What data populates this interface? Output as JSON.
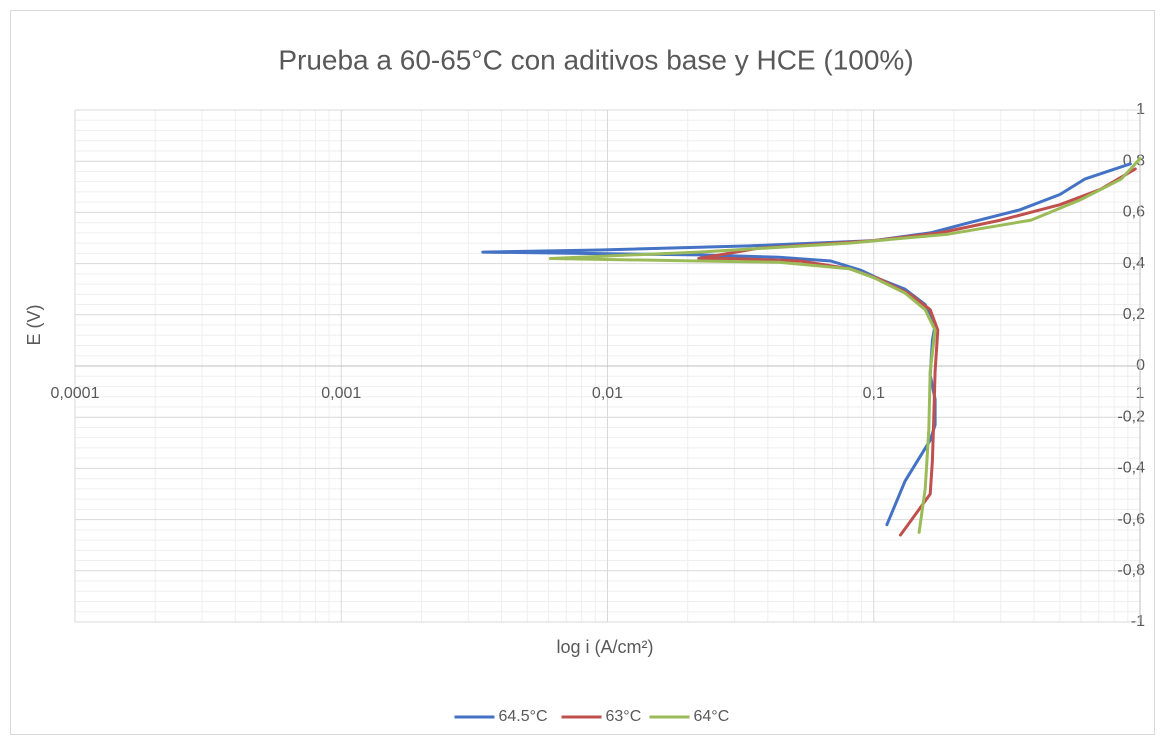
{
  "chart_data": {
    "type": "line",
    "title": "Prueba a 60-65°C con aditivos base y HCE (100%)",
    "x_label": "log i (A/cm²)",
    "y_label": "E (V)",
    "xscale": "log",
    "xlim": [
      0.0001,
      1
    ],
    "xticks": [
      {
        "value": 0.0001,
        "label": "0,0001"
      },
      {
        "value": 0.001,
        "label": "0,001"
      },
      {
        "value": 0.01,
        "label": "0,01"
      },
      {
        "value": 0.1,
        "label": "0,1"
      },
      1
    ],
    "ylim": [
      -1,
      1
    ],
    "yticks": [
      -1,
      {
        "value": -0.8,
        "label": "-0,8"
      },
      {
        "value": -0.6,
        "label": "-0,6"
      },
      {
        "value": -0.4,
        "label": "-0,4"
      },
      {
        "value": -0.2,
        "label": "-0,2"
      },
      0,
      {
        "value": 0.2,
        "label": "0,2"
      },
      {
        "value": 0.4,
        "label": "0,4"
      },
      {
        "value": 0.6,
        "label": "0,6"
      },
      {
        "value": 0.8,
        "label": "0,8"
      },
      1
    ],
    "grid": true,
    "minor_grid": true,
    "legend": "bottom",
    "series": [
      {
        "name": "64.5°C",
        "color": "#4472c4",
        "x": [
          0.112,
          0.131,
          0.163,
          0.17,
          0.17,
          0.163,
          0.166,
          0.17,
          0.156,
          0.131,
          0.105,
          0.089,
          0.069,
          0.044,
          0.022,
          0.0034,
          0.0094,
          0.034,
          0.1,
          0.163,
          0.229,
          0.354,
          0.5,
          0.62,
          0.92
        ],
        "values": [
          -0.62,
          -0.45,
          -0.29,
          -0.23,
          -0.13,
          -0.035,
          0.1,
          0.16,
          0.24,
          0.3,
          0.34,
          0.375,
          0.41,
          0.425,
          0.434,
          0.445,
          0.453,
          0.469,
          0.49,
          0.52,
          0.56,
          0.61,
          0.67,
          0.73,
          0.79
        ]
      },
      {
        "name": "63°C",
        "color": "#c0504d",
        "x": [
          0.126,
          0.148,
          0.163,
          0.166,
          0.168,
          0.17,
          0.174,
          0.163,
          0.137,
          0.105,
          0.081,
          0.053,
          0.029,
          0.022,
          0.037,
          0.1,
          0.177,
          0.3,
          0.5,
          0.71,
          0.96
        ],
        "values": [
          -0.66,
          -0.56,
          -0.5,
          -0.37,
          -0.21,
          -0.02,
          0.14,
          0.22,
          0.28,
          0.34,
          0.38,
          0.41,
          0.42,
          0.42,
          0.46,
          0.49,
          0.52,
          0.57,
          0.63,
          0.69,
          0.77
        ]
      },
      {
        "name": "64°C",
        "color": "#9bbb59",
        "x": [
          0.148,
          0.156,
          0.161,
          0.163,
          0.17,
          0.156,
          0.131,
          0.1,
          0.081,
          0.044,
          0.022,
          0.0061,
          0.022,
          0.081,
          0.19,
          0.39,
          0.6,
          0.85,
          1.0
        ],
        "values": [
          -0.65,
          -0.48,
          -0.25,
          -0.02,
          0.14,
          0.22,
          0.285,
          0.345,
          0.38,
          0.405,
          0.41,
          0.42,
          0.445,
          0.48,
          0.515,
          0.57,
          0.65,
          0.73,
          0.81
        ]
      }
    ]
  }
}
